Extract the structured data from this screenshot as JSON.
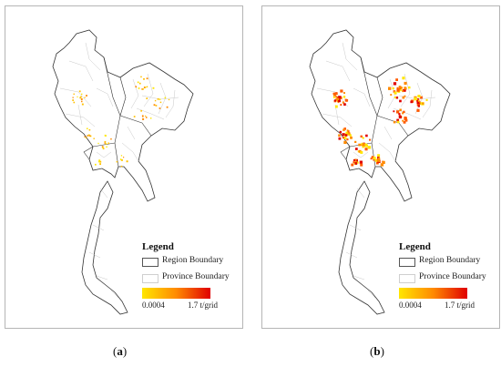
{
  "panels": [
    {
      "id": "a",
      "caption_letter": "a",
      "legend": {
        "title": "Legend",
        "region_label": "Region Boundary",
        "province_label": "Province Boundary",
        "ramp_min": "0.0004",
        "ramp_max": "1.7  t/grid"
      },
      "hotspot_intensity": "low"
    },
    {
      "id": "b",
      "caption_letter": "b",
      "legend": {
        "title": "Legend",
        "region_label": "Region Boundary",
        "province_label": "Province Boundary",
        "ramp_min": "0.0004",
        "ramp_max": "1.7  t/grid"
      },
      "hotspot_intensity": "high"
    }
  ],
  "colors": {
    "ramp_low": "#ffe600",
    "ramp_mid": "#ff8a00",
    "ramp_high": "#e00000",
    "region_boundary": "#333333",
    "province_boundary": "#c8c8c8"
  }
}
